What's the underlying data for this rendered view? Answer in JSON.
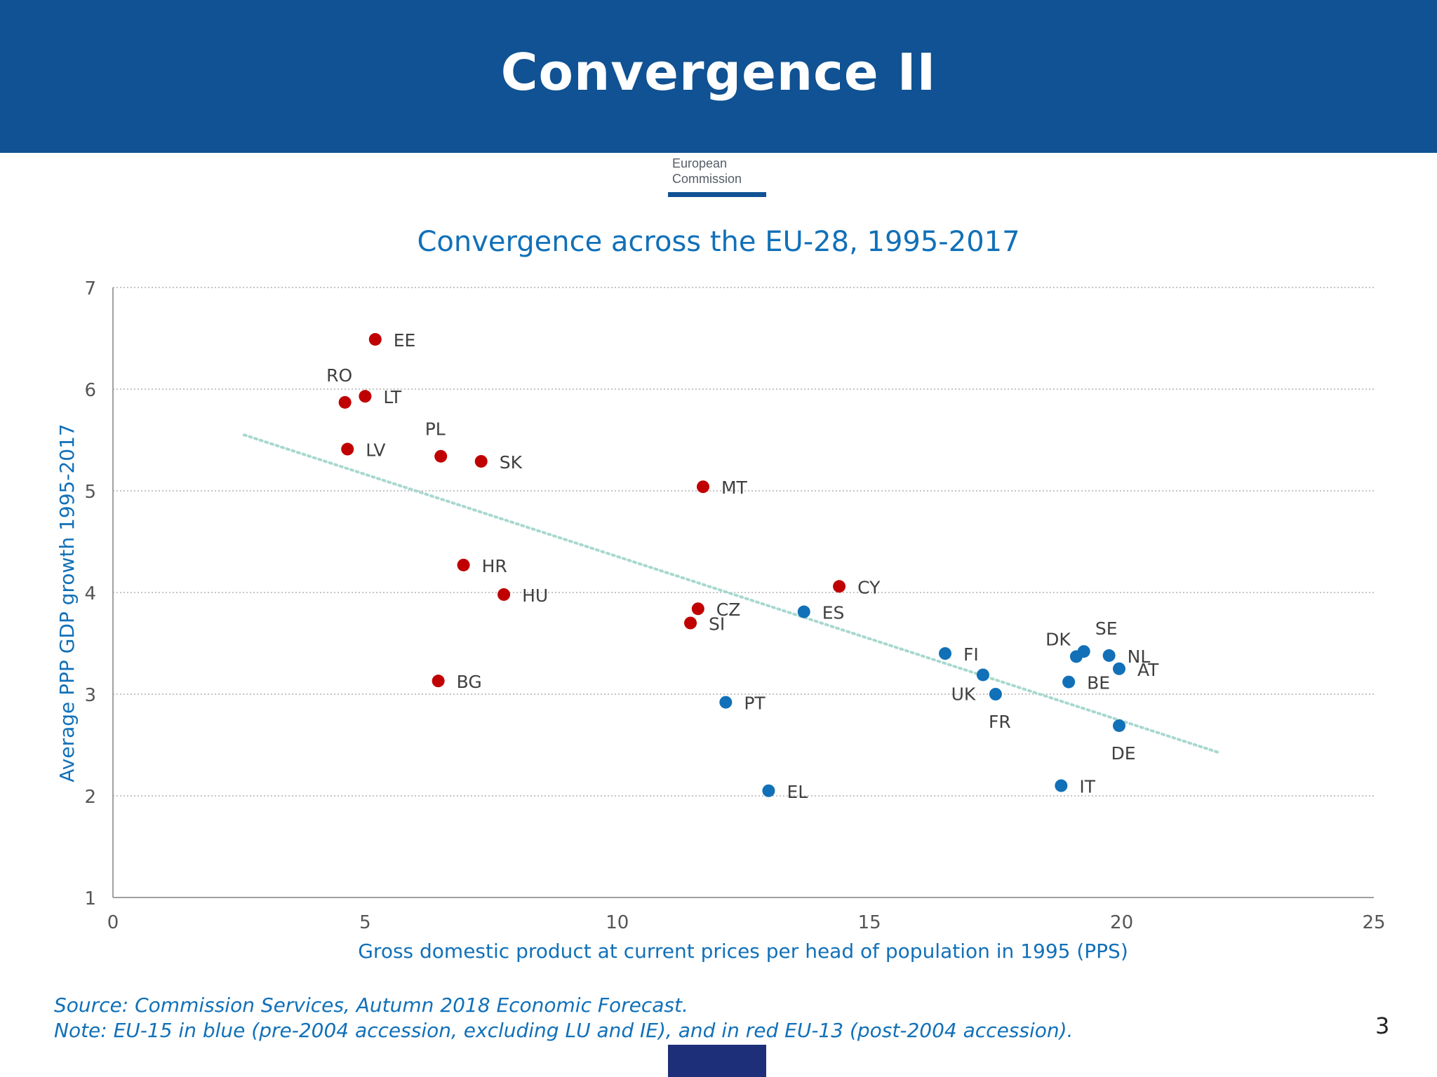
{
  "header": {
    "title": "Convergence II"
  },
  "logo": {
    "line1": "European",
    "line2": "Commission"
  },
  "chart_data": {
    "type": "scatter",
    "title": "Convergence across the EU-28, 1995-2017",
    "xlabel": "Gross domestic product at current prices per head of population in 1995 (PPS)",
    "ylabel": "Average PPP GDP growth 1995-2017",
    "xlim": [
      0,
      25
    ],
    "ylim": [
      1,
      7
    ],
    "x_ticks": [
      "0",
      "5",
      "10",
      "15",
      "20",
      "25"
    ],
    "y_ticks": [
      "1",
      "2",
      "3",
      "4",
      "5",
      "6",
      "7"
    ],
    "grid": "horizontal-dotted",
    "colors": {
      "eu13": "#c00000",
      "eu15": "#1170b8",
      "trend": "#a8d8cf"
    },
    "trendline": {
      "x": [
        2.6,
        21.9
      ],
      "y": [
        5.55,
        2.43
      ]
    },
    "points": [
      {
        "label": "EE",
        "x": 5.2,
        "y": 6.49,
        "group": "eu13",
        "lp": "right"
      },
      {
        "label": "RO",
        "x": 4.6,
        "y": 5.87,
        "group": "eu13",
        "lp": "above"
      },
      {
        "label": "LT",
        "x": 5.0,
        "y": 5.93,
        "group": "eu13",
        "lp": "right"
      },
      {
        "label": "LV",
        "x": 4.65,
        "y": 5.41,
        "group": "eu13",
        "lp": "right"
      },
      {
        "label": "PL",
        "x": 6.5,
        "y": 5.34,
        "group": "eu13",
        "lp": "above"
      },
      {
        "label": "SK",
        "x": 7.3,
        "y": 5.29,
        "group": "eu13",
        "lp": "right"
      },
      {
        "label": "MT",
        "x": 11.7,
        "y": 5.04,
        "group": "eu13",
        "lp": "right"
      },
      {
        "label": "HR",
        "x": 6.95,
        "y": 4.27,
        "group": "eu13",
        "lp": "right"
      },
      {
        "label": "HU",
        "x": 7.75,
        "y": 3.98,
        "group": "eu13",
        "lp": "right"
      },
      {
        "label": "CY",
        "x": 14.4,
        "y": 4.06,
        "group": "eu13",
        "lp": "right"
      },
      {
        "label": "CZ",
        "x": 11.6,
        "y": 3.84,
        "group": "eu13",
        "lp": "right"
      },
      {
        "label": "SI",
        "x": 11.45,
        "y": 3.7,
        "group": "eu13",
        "lp": "right"
      },
      {
        "label": "BG",
        "x": 6.45,
        "y": 3.13,
        "group": "eu13",
        "lp": "right"
      },
      {
        "label": "ES",
        "x": 13.7,
        "y": 3.81,
        "group": "eu15",
        "lp": "right"
      },
      {
        "label": "FI",
        "x": 16.5,
        "y": 3.4,
        "group": "eu15",
        "lp": "right"
      },
      {
        "label": "UK",
        "x": 17.25,
        "y": 3.19,
        "group": "eu15",
        "lp": "belowleft"
      },
      {
        "label": "FR",
        "x": 17.5,
        "y": 3.0,
        "group": "eu15",
        "lp": "below"
      },
      {
        "label": "DK",
        "x": 19.1,
        "y": 3.37,
        "group": "eu15",
        "lp": "aboveleft"
      },
      {
        "label": "SE",
        "x": 19.25,
        "y": 3.42,
        "group": "eu15",
        "lp": "aboveright"
      },
      {
        "label": "NL",
        "x": 19.75,
        "y": 3.38,
        "group": "eu15",
        "lp": "right"
      },
      {
        "label": "AT",
        "x": 19.95,
        "y": 3.25,
        "group": "eu15",
        "lp": "right"
      },
      {
        "label": "BE",
        "x": 18.95,
        "y": 3.12,
        "group": "eu15",
        "lp": "right"
      },
      {
        "label": "DE",
        "x": 19.95,
        "y": 2.69,
        "group": "eu15",
        "lp": "below"
      },
      {
        "label": "PT",
        "x": 12.15,
        "y": 2.92,
        "group": "eu15",
        "lp": "right"
      },
      {
        "label": "EL",
        "x": 13.0,
        "y": 2.05,
        "group": "eu15",
        "lp": "right"
      },
      {
        "label": "IT",
        "x": 18.8,
        "y": 2.1,
        "group": "eu15",
        "lp": "right"
      }
    ]
  },
  "source": {
    "line1": "Source: Commission Services, Autumn 2018 Economic Forecast.",
    "line2": "Note: EU-15 in blue (pre-2004 accession, excluding LU and IE), and in red EU-13 (post-2004 accession)."
  },
  "page_number": "3"
}
